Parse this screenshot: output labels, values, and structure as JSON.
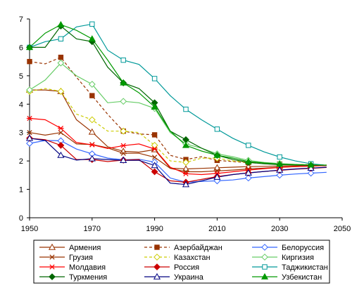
{
  "chart_data": {
    "type": "line",
    "title": "",
    "xlabel": "",
    "ylabel": "",
    "xlim": [
      1950,
      2050
    ],
    "ylim": [
      0,
      7
    ],
    "x_ticks": [
      1950,
      1970,
      1990,
      2010,
      2030,
      2050
    ],
    "y_ticks": [
      0,
      1,
      2,
      3,
      4,
      5,
      6,
      7
    ],
    "grid": false,
    "legend_position": "bottom",
    "x": [
      1950,
      1955,
      1960,
      1965,
      1970,
      1975,
      1980,
      1985,
      1990,
      1995,
      2000,
      2005,
      2010,
      2015,
      2020,
      2025,
      2030,
      2035,
      2040,
      2045
    ],
    "series": [
      {
        "name": "Армения",
        "color": "#993300",
        "dash": "",
        "marker": "triangle-open",
        "values": [
          4.5,
          4.5,
          4.45,
          3.45,
          3.02,
          2.5,
          2.34,
          2.31,
          2.4,
          1.75,
          1.72,
          1.74,
          1.76,
          1.78,
          1.8,
          1.81,
          1.82,
          1.83,
          1.84,
          1.85
        ]
      },
      {
        "name": "Азербайджан",
        "color": "#993300",
        "dash": "4,3",
        "marker": "square",
        "values": [
          5.5,
          5.42,
          5.65,
          4.95,
          4.3,
          3.64,
          3.05,
          2.95,
          2.92,
          2.2,
          2.05,
          2.15,
          2.02,
          1.98,
          1.94,
          1.91,
          1.89,
          1.87,
          1.86,
          1.85
        ]
      },
      {
        "name": "Белоруссия",
        "color": "#3366ff",
        "dash": "",
        "marker": "diamond-open",
        "values": [
          2.62,
          2.72,
          2.71,
          2.42,
          2.25,
          2.1,
          2.04,
          2.06,
          1.96,
          1.4,
          1.25,
          1.28,
          1.3,
          1.33,
          1.4,
          1.45,
          1.5,
          1.54,
          1.57,
          1.6
        ]
      },
      {
        "name": "Грузия",
        "color": "#993300",
        "dash": "",
        "marker": "x",
        "values": [
          3.0,
          2.91,
          3.0,
          2.6,
          2.58,
          2.46,
          2.27,
          2.27,
          2.13,
          1.74,
          1.62,
          1.62,
          1.65,
          1.68,
          1.72,
          1.75,
          1.78,
          1.8,
          1.82,
          1.84
        ]
      },
      {
        "name": "Казахстан",
        "color": "#cccc00",
        "dash": "4,3",
        "marker": "diamond-open",
        "values": [
          4.45,
          4.55,
          4.45,
          3.65,
          3.45,
          3.05,
          3.05,
          3.0,
          2.55,
          2.0,
          1.95,
          2.1,
          2.1,
          2.0,
          1.95,
          1.92,
          1.9,
          1.88,
          1.87,
          1.86
        ]
      },
      {
        "name": "Киргизия",
        "color": "#66cc66",
        "dash": "",
        "marker": "diamond-open",
        "values": [
          4.5,
          4.85,
          5.45,
          5.0,
          4.7,
          4.05,
          4.1,
          4.05,
          3.85,
          3.0,
          2.6,
          2.45,
          2.25,
          2.15,
          2.02,
          1.95,
          1.91,
          1.88,
          1.86,
          1.85
        ]
      },
      {
        "name": "Молдавия",
        "color": "#ff0000",
        "dash": "",
        "marker": "star",
        "values": [
          3.5,
          3.45,
          3.15,
          2.65,
          2.57,
          2.44,
          2.54,
          2.6,
          2.42,
          1.78,
          1.55,
          1.52,
          1.56,
          1.62,
          1.68,
          1.73,
          1.77,
          1.8,
          1.82,
          1.84
        ]
      },
      {
        "name": "Россия",
        "color": "#cc0000",
        "dash": "",
        "marker": "diamond",
        "values": [
          2.8,
          2.75,
          2.55,
          2.05,
          2.05,
          1.98,
          2.03,
          2.05,
          1.62,
          1.3,
          1.25,
          1.35,
          1.45,
          1.52,
          1.58,
          1.63,
          1.67,
          1.71,
          1.74,
          1.77
        ]
      },
      {
        "name": "Таджикистан",
        "color": "#009999",
        "dash": "",
        "marker": "square-open",
        "values": [
          6.0,
          6.2,
          6.3,
          6.72,
          6.82,
          5.9,
          5.55,
          5.4,
          4.9,
          4.3,
          3.82,
          3.45,
          3.12,
          2.8,
          2.55,
          2.32,
          2.14,
          2.0,
          1.9,
          1.85
        ]
      },
      {
        "name": "Туркмения",
        "color": "#006600",
        "dash": "",
        "marker": "diamond",
        "values": [
          6.0,
          6.0,
          6.75,
          6.3,
          6.2,
          5.3,
          4.75,
          4.55,
          4.05,
          3.05,
          2.75,
          2.45,
          2.2,
          2.05,
          1.95,
          1.9,
          1.87,
          1.86,
          1.85,
          1.85
        ]
      },
      {
        "name": "Украина",
        "color": "#000080",
        "dash": "",
        "marker": "triangle-open",
        "values": [
          2.8,
          2.72,
          2.2,
          2.03,
          2.08,
          2.05,
          2.02,
          2.02,
          1.84,
          1.22,
          1.17,
          1.3,
          1.43,
          1.52,
          1.58,
          1.63,
          1.68,
          1.72,
          1.75,
          1.78
        ]
      },
      {
        "name": "Узбекистан",
        "color": "#009900",
        "dash": "",
        "marker": "triangle",
        "values": [
          6.0,
          6.5,
          6.8,
          6.6,
          6.3,
          5.55,
          4.75,
          4.4,
          3.9,
          3.05,
          2.55,
          2.35,
          2.2,
          2.1,
          1.98,
          1.93,
          1.89,
          1.87,
          1.86,
          1.85
        ]
      }
    ]
  }
}
